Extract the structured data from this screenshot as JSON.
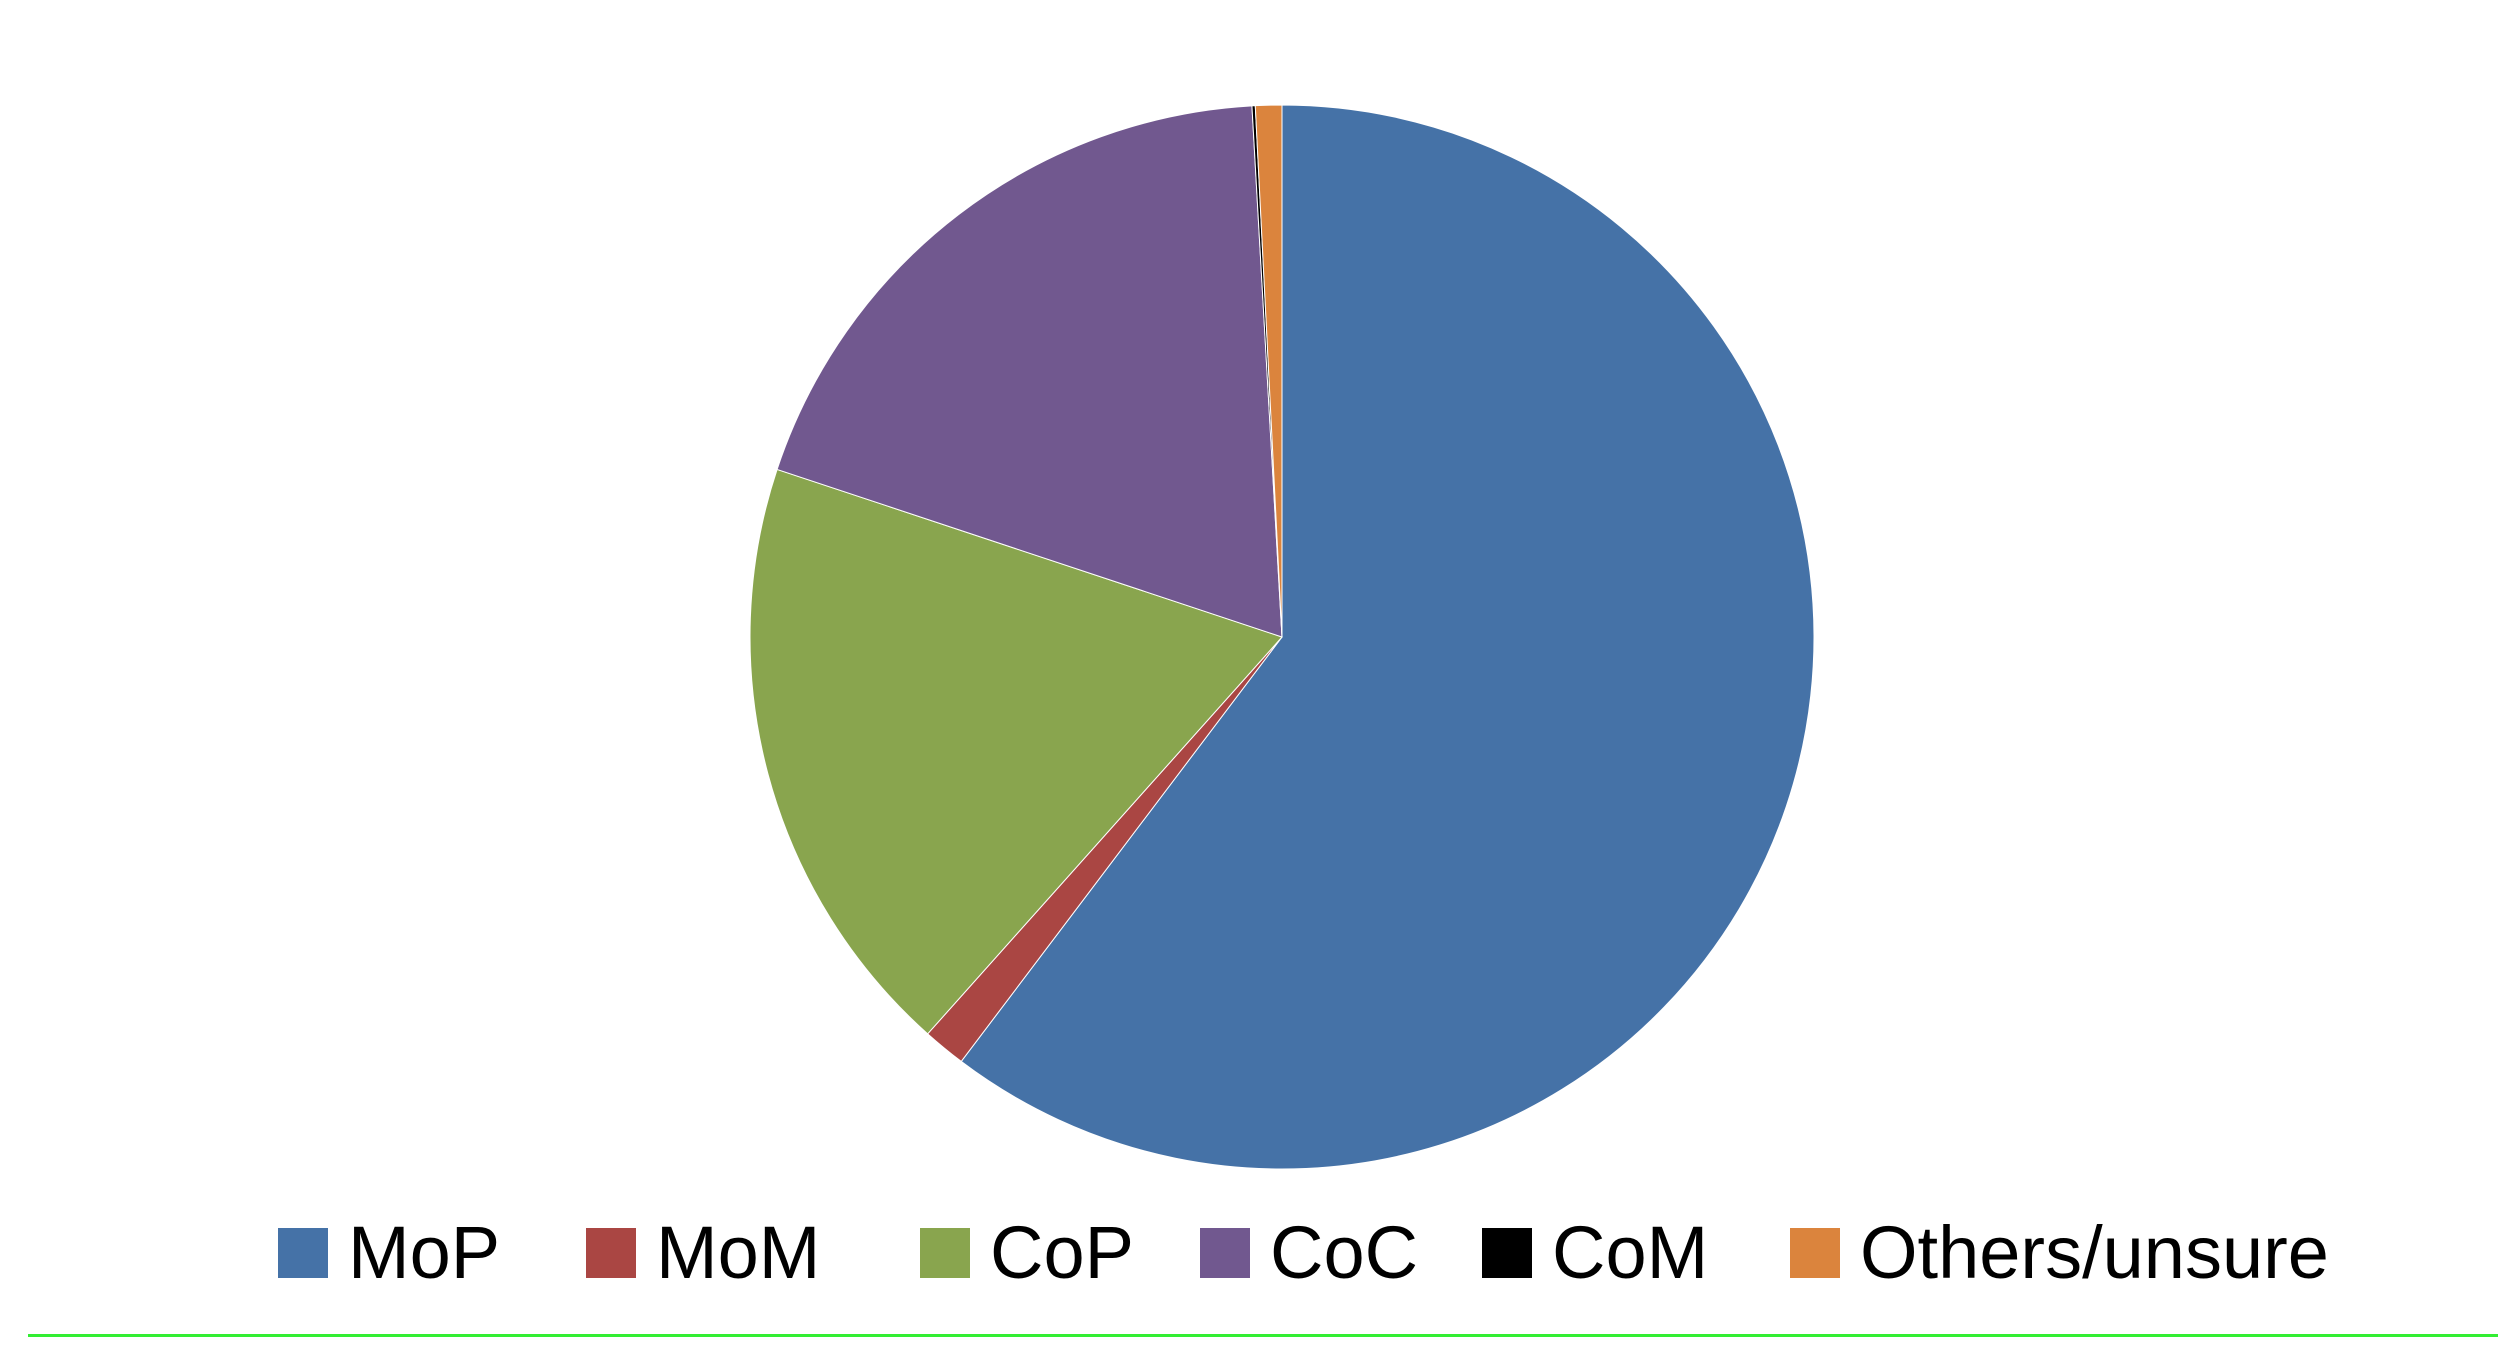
{
  "chart_data": {
    "type": "pie",
    "title": "",
    "legend_position": "bottom",
    "start_angle_deg": 0,
    "direction": "clockwise",
    "slices": [
      {
        "label": "MoP",
        "value": 60.3,
        "color": "#4572A7"
      },
      {
        "label": "MoM",
        "value": 1.3,
        "color": "#AA4643"
      },
      {
        "label": "CoP",
        "value": 18.5,
        "color": "#89A54E"
      },
      {
        "label": "CoC",
        "value": 19.0,
        "color": "#71588F"
      },
      {
        "label": "CoM",
        "value": 0.1,
        "color": "#000000"
      },
      {
        "label": "Others/unsure",
        "value": 0.8,
        "color": "#DB843D"
      }
    ]
  },
  "footer_rule_color": "#33ee33"
}
